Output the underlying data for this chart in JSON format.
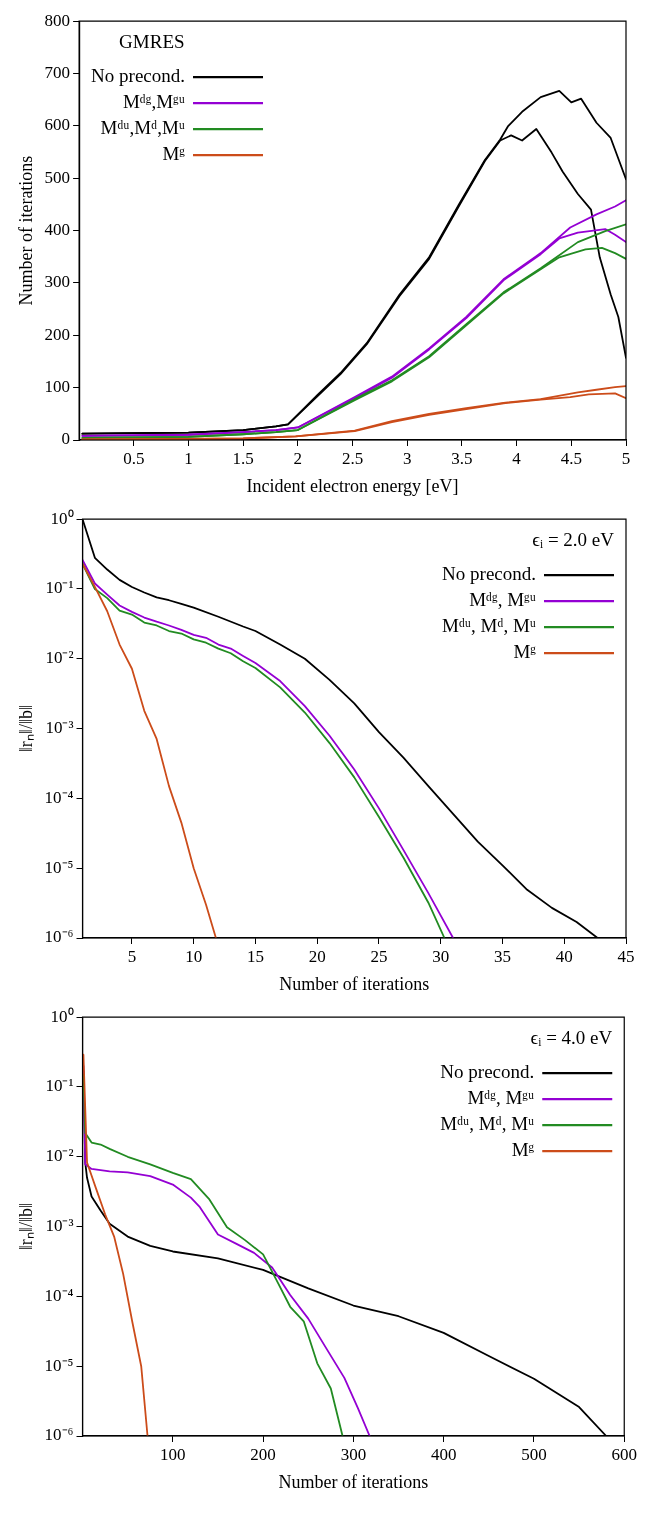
{
  "chart_data": [
    {
      "type": "line",
      "xlabel": "Incident electron energy [eV]",
      "ylabel": "Number of iterations",
      "xlim": [
        0,
        5
      ],
      "xticks": [
        0.5,
        1,
        1.5,
        2,
        2.5,
        3,
        3.5,
        4,
        4.5,
        5
      ],
      "ylim": [
        0,
        800
      ],
      "yticks": [
        0,
        100,
        200,
        300,
        400,
        500,
        600,
        700,
        800
      ],
      "legend": "top left",
      "annotations": [
        "GMRES"
      ],
      "series": [
        {
          "name": "No precond.",
          "color": "#000000",
          "x": [
            0.03,
            0.5,
            1,
            1.5,
            1.8,
            1.91,
            2.18,
            2.39,
            2.63,
            2.93,
            3.2,
            3.47,
            3.71,
            3.85,
            3.92,
            4.05,
            4.22,
            4.39,
            4.5,
            4.59,
            4.73,
            4.86,
            5
          ],
          "values": [
            12,
            13,
            14,
            19,
            26,
            30,
            86,
            128,
            185,
            278,
            349,
            449,
            535,
            574,
            599,
            627,
            655,
            667,
            645,
            652,
            606,
            577,
            498
          ]
        },
        {
          "color": "#000000",
          "x": [
            0.03,
            0.5,
            1,
            1.5,
            1.8,
            1.91,
            2.18,
            2.39,
            2.63,
            2.93,
            3.2,
            3.47,
            3.71,
            3.85,
            3.95,
            4.05,
            4.18,
            4.32,
            4.42,
            4.56,
            4.68,
            4.76,
            4.86,
            4.93,
            5
          ],
          "values": [
            12,
            13,
            14,
            19,
            26,
            30,
            84,
            126,
            183,
            275,
            346,
            446,
            533,
            572,
            582,
            572,
            594,
            549,
            513,
            470,
            440,
            349,
            278,
            235,
            157
          ]
        },
        {
          "name": "Mᵈᵍ,Mᵍᵘ",
          "color": "#9400d3",
          "x": [
            0.03,
            1,
            1.5,
            1.8,
            2.0,
            2.52,
            2.86,
            3.2,
            3.54,
            3.88,
            4.22,
            4.49,
            4.73,
            4.9,
            5
          ],
          "values": [
            8,
            10,
            15,
            19,
            24,
            82,
            121,
            175,
            235,
            307,
            357,
            406,
            431,
            446,
            458
          ]
        },
        {
          "color": "#9400d3",
          "x": [
            0.03,
            1,
            1.5,
            1.8,
            2.0,
            2.52,
            2.86,
            3.2,
            3.54,
            3.88,
            4.22,
            4.39,
            4.56,
            4.81,
            4.9,
            5
          ],
          "values": [
            8,
            10,
            15,
            19,
            24,
            80,
            119,
            173,
            233,
            305,
            355,
            385,
            396,
            403,
            392,
            378
          ]
        },
        {
          "name": "Mᵈᵘ,Mᵈ,Mᵘ",
          "color": "#228b22",
          "x": [
            0.03,
            1,
            1.5,
            1.8,
            2.0,
            2.52,
            2.86,
            3.2,
            3.54,
            3.88,
            4.22,
            4.56,
            4.81,
            5
          ],
          "values": [
            4,
            6,
            11,
            15,
            19,
            78,
            114,
            160,
            221,
            282,
            328,
            378,
            399,
            412
          ]
        },
        {
          "color": "#228b22",
          "x": [
            0.03,
            1,
            1.5,
            1.8,
            2.0,
            2.52,
            2.86,
            3.2,
            3.54,
            3.88,
            4.22,
            4.39,
            4.63,
            4.78,
            4.9,
            5
          ],
          "values": [
            4,
            6,
            11,
            15,
            19,
            76,
            112,
            158,
            219,
            280,
            326,
            349,
            364,
            367,
            357,
            346
          ]
        },
        {
          "name": "Mᵍ",
          "color": "#cc4c1a",
          "x": [
            0.03,
            1,
            1.5,
            1.98,
            2.52,
            2.86,
            3.2,
            3.54,
            3.88,
            4.22,
            4.56,
            4.73,
            4.9,
            5
          ],
          "values": [
            1,
            2,
            3,
            7,
            18,
            36,
            50,
            61,
            71,
            78,
            91,
            96,
            101,
            103
          ]
        },
        {
          "color": "#cc4c1a",
          "x": [
            0.03,
            1,
            1.5,
            1.98,
            2.52,
            2.86,
            3.2,
            3.54,
            3.88,
            4.22,
            4.49,
            4.66,
            4.9,
            5
          ],
          "values": [
            1,
            2,
            3,
            7,
            17,
            34,
            48,
            59,
            70,
            77,
            82,
            87,
            89,
            80
          ]
        }
      ]
    },
    {
      "type": "line",
      "xlabel": "Number of iterations",
      "ylabel": "‖rₙ‖/‖b‖",
      "log": "y",
      "xlim": [
        1,
        45
      ],
      "xticks": [
        5,
        10,
        15,
        20,
        25,
        30,
        35,
        40,
        45
      ],
      "ylim": [
        1e-06,
        1
      ],
      "yticks": [
        {
          "value": 1e-06,
          "label": "10⁻⁶"
        },
        {
          "value": 1e-05,
          "label": "10⁻⁵"
        },
        {
          "value": 0.0001,
          "label": "10⁻⁴"
        },
        {
          "value": 0.001,
          "label": "10⁻³"
        },
        {
          "value": 0.01,
          "label": "10⁻²"
        },
        {
          "value": 0.1,
          "label": "10⁻¹"
        },
        {
          "value": 1,
          "label": "10⁰"
        }
      ],
      "legend": "top right",
      "annotations": [
        "ϵᵢ = 2.0 eV"
      ],
      "series": [
        {
          "name": "No precond.",
          "color": "#000000",
          "x": [
            1,
            2,
            3,
            4,
            5,
            6,
            7,
            8,
            9,
            10,
            12,
            14,
            15,
            17,
            19,
            21,
            23,
            25,
            27,
            29,
            31,
            33,
            35,
            37,
            39,
            41,
            42.7
          ],
          "values": [
            1,
            0.28,
            0.19,
            0.135,
            0.107,
            0.089,
            0.076,
            0.069,
            0.061,
            0.054,
            0.04,
            0.029,
            0.025,
            0.016,
            0.01,
            0.005,
            0.0023,
            0.00089,
            0.00038,
            0.00015,
            6e-05,
            2.4e-05,
            1.1e-05,
            4.9e-06,
            2.7e-06,
            1.7e-06,
            1e-06
          ]
        },
        {
          "name": "Mᵈᵍ, Mᵍᵘ",
          "color": "#9400d3",
          "x": [
            1,
            2,
            3,
            4,
            5,
            6,
            7,
            8,
            9,
            10,
            11,
            12,
            13,
            14,
            15,
            17,
            19,
            21,
            23,
            25,
            27,
            29,
            31
          ],
          "values": [
            0.26,
            0.12,
            0.083,
            0.058,
            0.047,
            0.039,
            0.034,
            0.03,
            0.026,
            0.022,
            0.02,
            0.016,
            0.014,
            0.011,
            0.0087,
            0.0048,
            0.0021,
            0.00079,
            0.00026,
            7.2e-05,
            1.8e-05,
            4.4e-06,
            1e-06
          ]
        },
        {
          "name": "Mᵈᵘ, Mᵈ, Mᵘ",
          "color": "#228b22",
          "x": [
            1,
            2,
            3,
            4,
            5,
            6,
            7,
            8,
            9,
            10,
            11,
            12,
            13,
            14,
            15,
            17,
            19,
            21,
            23,
            25,
            27,
            29,
            30.3
          ],
          "values": [
            0.23,
            0.1,
            0.074,
            0.049,
            0.043,
            0.033,
            0.03,
            0.025,
            0.023,
            0.019,
            0.017,
            0.014,
            0.012,
            0.0092,
            0.0074,
            0.0039,
            0.0017,
            0.00062,
            0.0002,
            5.4e-05,
            1.4e-05,
            3.2e-06,
            1e-06
          ]
        },
        {
          "name": "Mᵍ",
          "color": "#cc4c1a",
          "x": [
            1,
            2,
            3,
            4,
            5,
            6,
            7,
            8,
            9,
            10,
            11,
            11.8
          ],
          "values": [
            0.23,
            0.107,
            0.048,
            0.016,
            0.0072,
            0.0018,
            0.00071,
            0.00015,
            4.5e-05,
            1e-05,
            3e-06,
            1e-06
          ]
        }
      ]
    },
    {
      "type": "line",
      "xlabel": "Number of iterations",
      "ylabel": "‖rₙ‖/‖b‖",
      "log": "y",
      "xlim": [
        0,
        600
      ],
      "xticks": [
        100,
        200,
        300,
        400,
        500,
        600
      ],
      "ylim": [
        1e-06,
        1
      ],
      "yticks": [
        {
          "value": 1e-06,
          "label": "10⁻⁶"
        },
        {
          "value": 1e-05,
          "label": "10⁻⁵"
        },
        {
          "value": 0.0001,
          "label": "10⁻⁴"
        },
        {
          "value": 0.001,
          "label": "10⁻³"
        },
        {
          "value": 0.01,
          "label": "10⁻²"
        },
        {
          "value": 0.1,
          "label": "10⁻¹"
        },
        {
          "value": 1,
          "label": "10⁰"
        }
      ],
      "legend": "top right",
      "annotations": [
        "ϵᵢ = 4.0 eV"
      ],
      "series": [
        {
          "name": "No precond.",
          "color": "#000000",
          "x": [
            1,
            3,
            5,
            10,
            20,
            30,
            50,
            75,
            100,
            150,
            200,
            250,
            300,
            350,
            400,
            450,
            500,
            550,
            580
          ],
          "values": [
            0.17,
            0.0083,
            0.005,
            0.0027,
            0.0017,
            0.0011,
            0.00072,
            0.00053,
            0.00044,
            0.00035,
            0.00024,
            0.00013,
            7.4e-05,
            5.2e-05,
            3e-05,
            1.4e-05,
            6.6e-06,
            2.6e-06,
            1e-06
          ]
        },
        {
          "name": "Mᵈᵍ, Mᵍᵘ",
          "color": "#9400d3",
          "x": [
            1,
            3,
            10,
            30,
            50,
            75,
            100,
            120,
            130,
            150,
            170,
            190,
            210,
            230,
            250,
            270,
            290,
            305,
            318
          ],
          "values": [
            0.2,
            0.0078,
            0.0067,
            0.0062,
            0.006,
            0.0053,
            0.004,
            0.0026,
            0.0019,
            0.00077,
            0.00057,
            0.00042,
            0.00026,
            0.000105,
            4.8e-05,
            1.8e-05,
            6.8e-06,
            2.5e-06,
            1e-06
          ]
        },
        {
          "name": "Mᵈᵘ, Mᵈ, Mᵘ",
          "color": "#228b22",
          "x": [
            1,
            3,
            10,
            20,
            30,
            50,
            75,
            100,
            120,
            140,
            160,
            180,
            200,
            215,
            230,
            245,
            260,
            275,
            288
          ],
          "values": [
            0.15,
            0.022,
            0.016,
            0.015,
            0.013,
            0.01,
            0.0078,
            0.0059,
            0.0048,
            0.0025,
            0.00098,
            0.00064,
            0.0004,
            0.00017,
            7.1e-05,
            4.4e-05,
            1.1e-05,
            4.8e-06,
            1e-06
          ]
        },
        {
          "name": "Mᵍ",
          "color": "#cc4c1a",
          "x": [
            1,
            5,
            15,
            25,
            35,
            45,
            55,
            65,
            72
          ],
          "values": [
            0.29,
            0.0083,
            0.0035,
            0.0015,
            0.00072,
            0.00021,
            4.4e-05,
            1e-05,
            1e-06
          ]
        }
      ]
    }
  ]
}
